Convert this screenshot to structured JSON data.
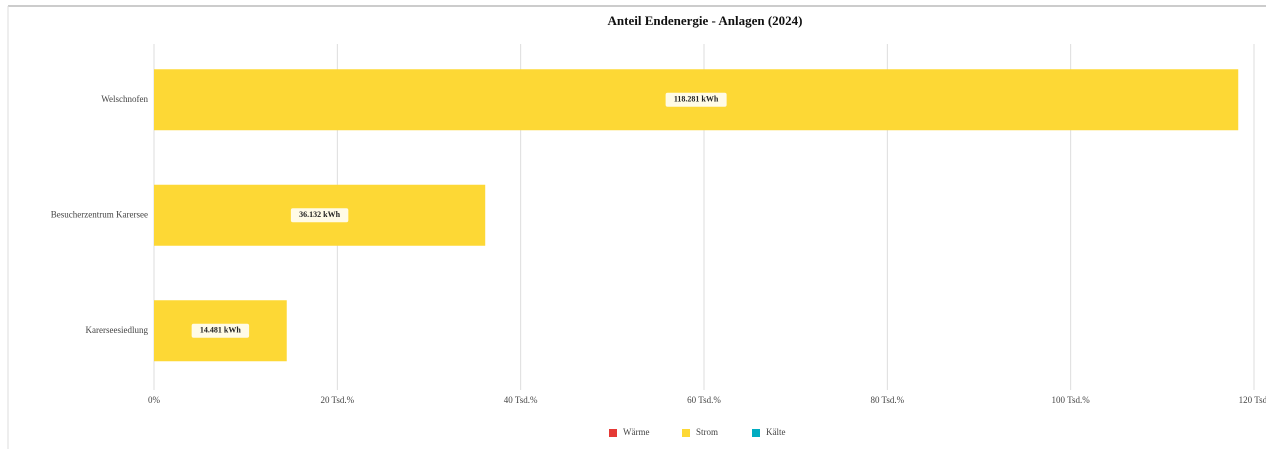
{
  "chart_data": {
    "type": "bar",
    "orientation": "horizontal",
    "stacked": true,
    "title": "Anteil Endenergie - Anlagen (2024)",
    "categories": [
      "Welschnofen",
      "Besucherzentrum Karersee",
      "Karerseesiedlung"
    ],
    "series": [
      {
        "name": "Wärme",
        "color": "#e53935",
        "values": [
          0,
          0,
          0
        ]
      },
      {
        "name": "Strom",
        "color": "#fdd835",
        "values": [
          118281,
          36132,
          14481
        ],
        "value_labels": [
          "118.281 kWh",
          "36.132 kWh",
          "14.481 kWh"
        ]
      },
      {
        "name": "Kälte",
        "color": "#00acc1",
        "values": [
          0,
          0,
          0
        ]
      }
    ],
    "xlim": [
      0,
      120000
    ],
    "xticks": [
      {
        "value": 0,
        "label": "0%"
      },
      {
        "value": 20000,
        "label": "20 Tsd.%"
      },
      {
        "value": 40000,
        "label": "40 Tsd.%"
      },
      {
        "value": 60000,
        "label": "60 Tsd.%"
      },
      {
        "value": 80000,
        "label": "80 Tsd.%"
      },
      {
        "value": 100000,
        "label": "100 Tsd.%"
      },
      {
        "value": 120000,
        "label": "120 Tsd."
      }
    ],
    "grid": true,
    "legend": "bottom"
  }
}
